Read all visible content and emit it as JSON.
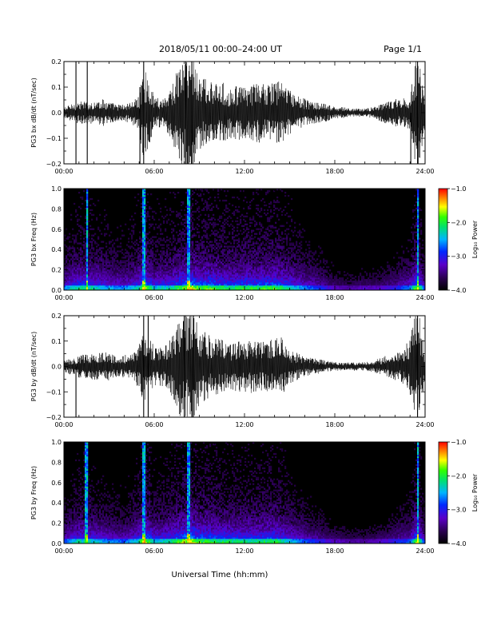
{
  "header": {
    "title": "2018/05/11  00:00–24:00 UT",
    "page": "Page 1/1"
  },
  "xlabel": "Universal Time (hh:mm)",
  "chart_data": [
    {
      "type": "line",
      "ylabel": "PG3 bx dB/dt (nT/sec)",
      "xlim": [
        0,
        24
      ],
      "xticks": [
        "00:00",
        "06:00",
        "12:00",
        "18:00",
        "24:00"
      ],
      "ylim": [
        -0.2,
        0.2
      ],
      "yticks": [
        "0.2",
        "0.1",
        "0.0",
        "−0.1",
        "−0.2"
      ],
      "envelope": {
        "x": [
          0,
          0.5,
          1.0,
          1.5,
          2.0,
          2.5,
          3.0,
          3.5,
          4.0,
          4.5,
          5.0,
          5.25,
          5.5,
          5.75,
          6.0,
          6.5,
          7.0,
          7.5,
          7.9,
          8.25,
          8.6,
          9.0,
          9.5,
          10.0,
          10.5,
          11.0,
          11.5,
          12.0,
          12.5,
          13.0,
          13.5,
          14.0,
          14.5,
          15.0,
          15.5,
          16.0,
          16.5,
          17.0,
          17.5,
          18.0,
          18.5,
          19.0,
          19.5,
          20.0,
          20.5,
          21.0,
          21.5,
          22.0,
          22.5,
          23.0,
          23.3,
          23.6,
          24.0
        ],
        "amplitude": [
          0.02,
          0.03,
          0.04,
          0.04,
          0.04,
          0.05,
          0.04,
          0.03,
          0.03,
          0.04,
          0.06,
          0.16,
          0.14,
          0.1,
          0.06,
          0.05,
          0.08,
          0.15,
          0.2,
          0.2,
          0.2,
          0.14,
          0.12,
          0.1,
          0.11,
          0.09,
          0.1,
          0.09,
          0.1,
          0.11,
          0.1,
          0.11,
          0.12,
          0.08,
          0.06,
          0.05,
          0.04,
          0.035,
          0.03,
          0.02,
          0.02,
          0.015,
          0.015,
          0.015,
          0.02,
          0.03,
          0.04,
          0.05,
          0.05,
          0.06,
          0.18,
          0.2,
          0.05
        ]
      },
      "spikes": [
        {
          "x": 0.8,
          "y": 0.2
        },
        {
          "x": 0.8,
          "y": -0.2
        },
        {
          "x": 1.55,
          "y": 0.2
        },
        {
          "x": 1.55,
          "y": -0.2
        },
        {
          "x": 5.05,
          "y": 0.1
        },
        {
          "x": 5.05,
          "y": -0.2
        },
        {
          "x": 5.3,
          "y": 0.2
        },
        {
          "x": 5.3,
          "y": -0.2
        },
        {
          "x": 8.1,
          "y": 0.2
        },
        {
          "x": 8.1,
          "y": -0.2
        },
        {
          "x": 8.5,
          "y": 0.2
        },
        {
          "x": 8.5,
          "y": -0.2
        },
        {
          "x": 23.05,
          "y": -0.2
        },
        {
          "x": 23.5,
          "y": 0.2
        },
        {
          "x": 23.5,
          "y": -0.2
        }
      ]
    },
    {
      "type": "heatmap",
      "ylabel": "PG3 bx Freq (Hz)",
      "xlim": [
        0,
        24
      ],
      "xticks": [
        "00:00",
        "06:00",
        "12:00",
        "18:00",
        "24:00"
      ],
      "ylim": [
        0,
        1.0
      ],
      "yticks": [
        "1.0",
        "0.8",
        "0.6",
        "0.4",
        "0.2",
        "0.0"
      ],
      "colorbar": {
        "label": "Log₁₀ Power",
        "range": [
          -4.0,
          -1.0
        ],
        "ticks": [
          "−1.0",
          "−2.0",
          "−3.0",
          "−4.0"
        ]
      },
      "activity": {
        "x": [
          0,
          1,
          2,
          3,
          4,
          5,
          5.3,
          6,
          7,
          8,
          8.3,
          9,
          10,
          11,
          12,
          13,
          14,
          15,
          16,
          17,
          18,
          19,
          20,
          21,
          22,
          23,
          23.5,
          24
        ],
        "level": [
          0.55,
          0.75,
          0.7,
          0.6,
          0.55,
          0.7,
          1.0,
          0.65,
          0.7,
          0.9,
          1.0,
          0.85,
          0.85,
          0.75,
          0.8,
          0.8,
          0.85,
          0.7,
          0.55,
          0.45,
          0.3,
          0.25,
          0.3,
          0.3,
          0.4,
          0.55,
          0.95,
          0.4
        ]
      },
      "bright_lines": [
        1.55,
        5.3,
        8.3,
        23.5
      ]
    },
    {
      "type": "line",
      "ylabel": "PG3 by dB/dt (nT/sec)",
      "xlim": [
        0,
        24
      ],
      "xticks": [
        "00:00",
        "06:00",
        "12:00",
        "18:00",
        "24:00"
      ],
      "ylim": [
        -0.2,
        0.2
      ],
      "yticks": [
        "0.2",
        "0.1",
        "0.0",
        "−0.1",
        "−0.2"
      ],
      "envelope": {
        "x": [
          0,
          0.5,
          1.0,
          1.5,
          2.0,
          2.5,
          3.0,
          3.5,
          4.0,
          4.5,
          5.0,
          5.25,
          5.5,
          5.75,
          6.0,
          6.5,
          7.0,
          7.5,
          7.9,
          8.25,
          8.6,
          9.0,
          9.5,
          10.0,
          10.5,
          11.0,
          11.5,
          12.0,
          12.5,
          13.0,
          13.5,
          14.0,
          14.5,
          15.0,
          15.5,
          16.0,
          16.5,
          17.0,
          17.5,
          18.0,
          18.5,
          19.0,
          19.5,
          20.0,
          20.5,
          21.0,
          21.5,
          22.0,
          22.5,
          23.0,
          23.3,
          23.6,
          24.0
        ],
        "amplitude": [
          0.02,
          0.03,
          0.04,
          0.05,
          0.05,
          0.05,
          0.05,
          0.04,
          0.04,
          0.05,
          0.08,
          0.14,
          0.12,
          0.1,
          0.07,
          0.07,
          0.09,
          0.15,
          0.2,
          0.2,
          0.2,
          0.15,
          0.12,
          0.1,
          0.1,
          0.08,
          0.09,
          0.09,
          0.1,
          0.09,
          0.09,
          0.1,
          0.11,
          0.06,
          0.05,
          0.035,
          0.03,
          0.025,
          0.02,
          0.015,
          0.015,
          0.015,
          0.015,
          0.015,
          0.02,
          0.03,
          0.04,
          0.05,
          0.06,
          0.1,
          0.18,
          0.2,
          0.04
        ]
      },
      "spikes": [
        {
          "x": 0.8,
          "y": -0.2
        },
        {
          "x": 5.3,
          "y": 0.2
        },
        {
          "x": 5.3,
          "y": -0.2
        },
        {
          "x": 5.6,
          "y": 0.2
        },
        {
          "x": 5.6,
          "y": -0.2
        },
        {
          "x": 8.0,
          "y": 0.2
        },
        {
          "x": 8.0,
          "y": -0.2
        },
        {
          "x": 8.6,
          "y": 0.2
        },
        {
          "x": 8.6,
          "y": -0.2
        },
        {
          "x": 23.5,
          "y": 0.2
        },
        {
          "x": 23.5,
          "y": -0.2
        }
      ]
    },
    {
      "type": "heatmap",
      "ylabel": "PG3 by Freq (Hz)",
      "xlim": [
        0,
        24
      ],
      "xticks": [
        "00:00",
        "06:00",
        "12:00",
        "18:00",
        "24:00"
      ],
      "ylim": [
        0,
        1.0
      ],
      "yticks": [
        "1.0",
        "0.8",
        "0.6",
        "0.4",
        "0.2",
        "0.0"
      ],
      "colorbar": {
        "label": "Log₁₀ Power",
        "range": [
          -4.0,
          -1.0
        ],
        "ticks": [
          "−1.0",
          "−2.0",
          "−3.0",
          "−4.0"
        ]
      },
      "activity": {
        "x": [
          0,
          1,
          2,
          3,
          4,
          5,
          5.3,
          6,
          7,
          8,
          8.3,
          9,
          10,
          11,
          12,
          13,
          14,
          15,
          16,
          17,
          18,
          19,
          20,
          21,
          22,
          23,
          23.5,
          24
        ],
        "level": [
          0.5,
          0.7,
          0.65,
          0.55,
          0.5,
          0.7,
          1.0,
          0.65,
          0.7,
          0.9,
          1.0,
          0.85,
          0.8,
          0.75,
          0.75,
          0.75,
          0.8,
          0.65,
          0.5,
          0.4,
          0.3,
          0.25,
          0.25,
          0.3,
          0.4,
          0.5,
          0.95,
          0.4
        ]
      },
      "bright_lines": [
        1.5,
        5.3,
        8.3,
        23.5
      ]
    }
  ]
}
